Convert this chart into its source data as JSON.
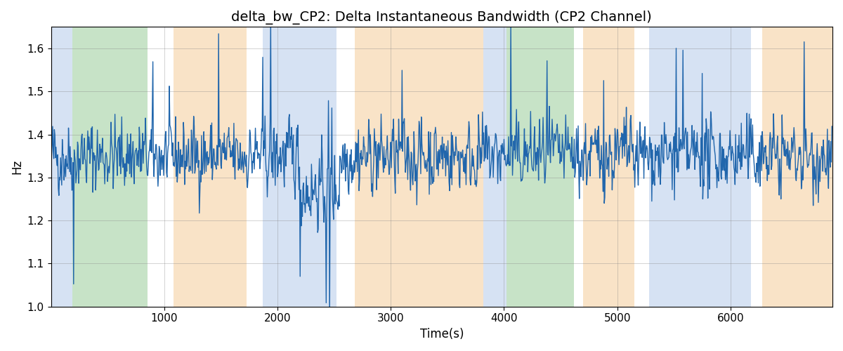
{
  "title": "delta_bw_CP2: Delta Instantaneous Bandwidth (CP2 Channel)",
  "xlabel": "Time(s)",
  "ylabel": "Hz",
  "xlim": [
    0,
    6900
  ],
  "ylim": [
    1.0,
    1.65
  ],
  "yticks": [
    1.0,
    1.1,
    1.2,
    1.3,
    1.4,
    1.5,
    1.6
  ],
  "xticks": [
    1000,
    2000,
    3000,
    4000,
    5000,
    6000
  ],
  "line_color": "#2166ac",
  "line_width": 1.0,
  "seed": 42,
  "n_points": 1380,
  "dt": 5,
  "mean": 1.35,
  "std": 0.04,
  "bg_regions": [
    {
      "xmin": 0,
      "xmax": 190,
      "color": "#aec6e8",
      "alpha": 0.5
    },
    {
      "xmin": 190,
      "xmax": 850,
      "color": "#90c990",
      "alpha": 0.5
    },
    {
      "xmin": 1080,
      "xmax": 1730,
      "color": "#f5c990",
      "alpha": 0.5
    },
    {
      "xmin": 1870,
      "xmax": 2520,
      "color": "#aec6e8",
      "alpha": 0.5
    },
    {
      "xmin": 2680,
      "xmax": 3820,
      "color": "#f5c990",
      "alpha": 0.5
    },
    {
      "xmin": 3820,
      "xmax": 4020,
      "color": "#aec6e8",
      "alpha": 0.5
    },
    {
      "xmin": 4020,
      "xmax": 4620,
      "color": "#90c990",
      "alpha": 0.5
    },
    {
      "xmin": 4700,
      "xmax": 5150,
      "color": "#f5c990",
      "alpha": 0.5
    },
    {
      "xmin": 5280,
      "xmax": 6180,
      "color": "#aec6e8",
      "alpha": 0.5
    },
    {
      "xmin": 6280,
      "xmax": 6900,
      "color": "#f5c990",
      "alpha": 0.5
    }
  ],
  "title_fontsize": 14,
  "label_fontsize": 12,
  "tick_fontsize": 11
}
